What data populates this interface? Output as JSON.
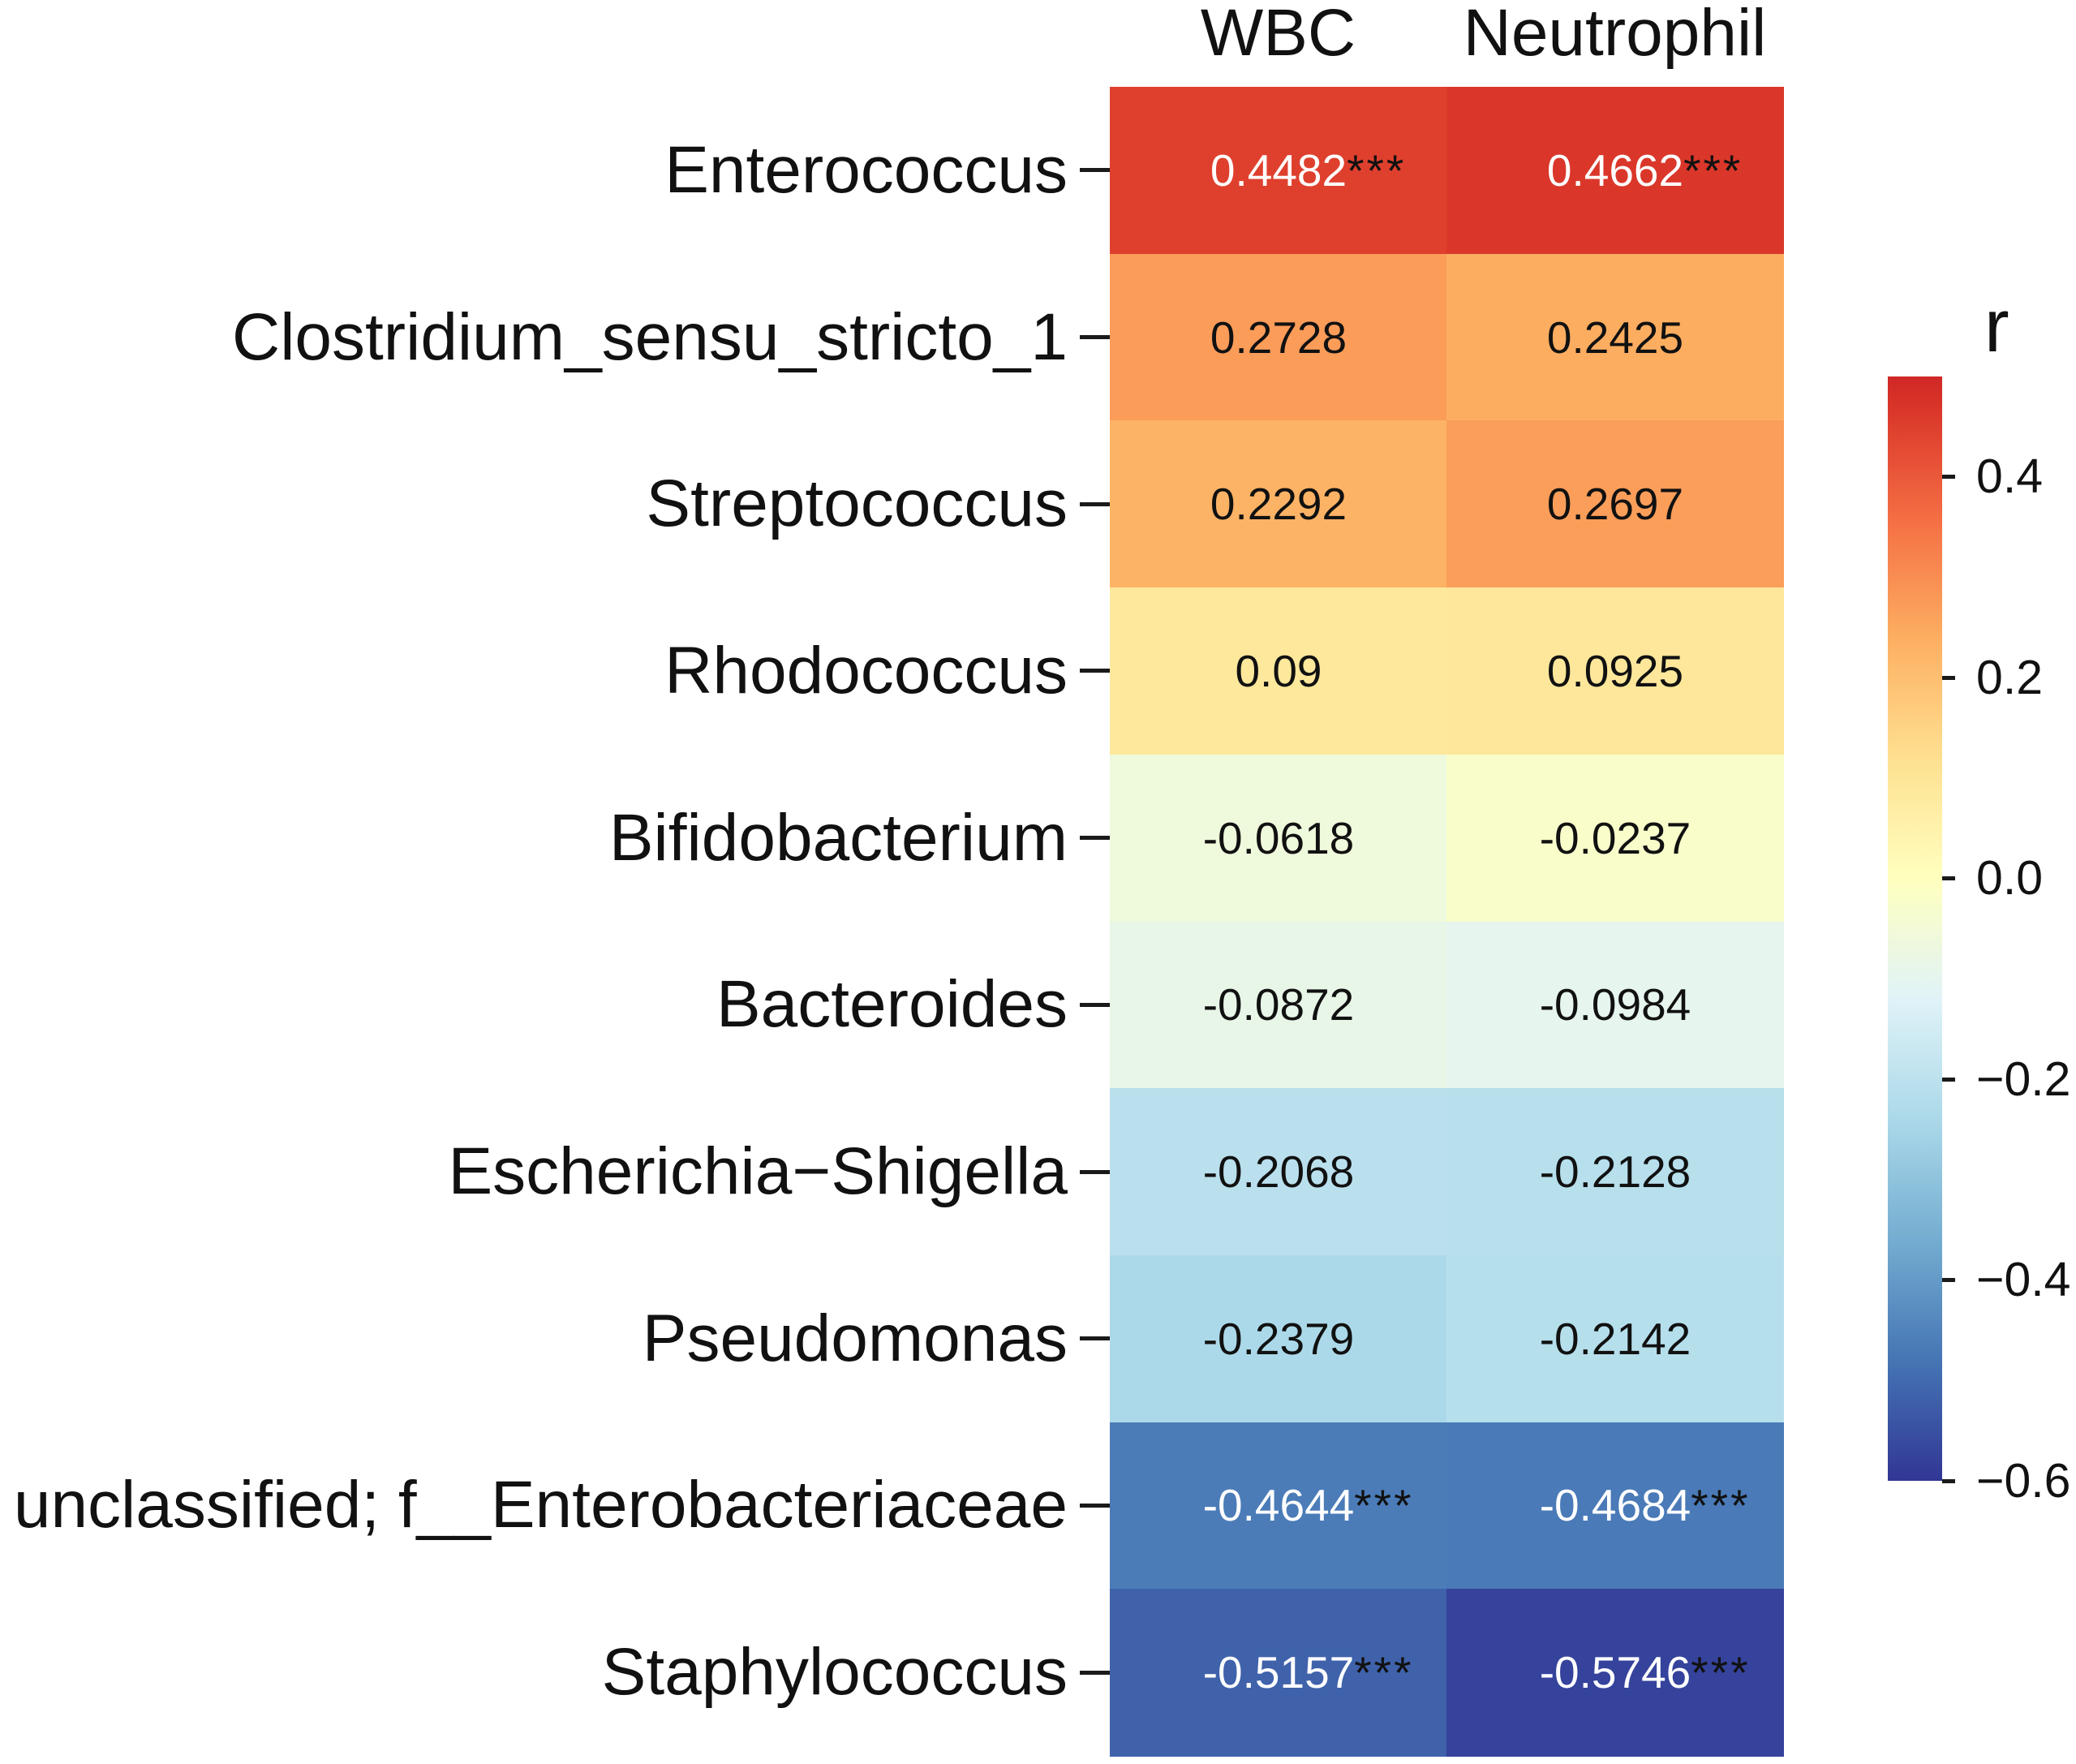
{
  "chart_data": {
    "type": "heatmap",
    "columns": [
      "WBC",
      "Neutrophil"
    ],
    "rows": [
      "Enterococcus",
      "Clostridium_sensu_stricto_1",
      "Streptococcus",
      "Rhodococcus",
      "Bifidobacterium",
      "Bacteroides",
      "Escherichia−Shigella",
      "Pseudomonas",
      "unclassified; f__Enterobacteriaceae",
      "Staphylococcus"
    ],
    "values": [
      [
        0.4482,
        0.4662
      ],
      [
        0.2728,
        0.2425
      ],
      [
        0.2292,
        0.2697
      ],
      [
        0.09,
        0.0925
      ],
      [
        -0.0618,
        -0.0237
      ],
      [
        -0.0872,
        -0.0984
      ],
      [
        -0.2068,
        -0.2128
      ],
      [
        -0.2379,
        -0.2142
      ],
      [
        -0.4644,
        -0.4684
      ],
      [
        -0.5157,
        -0.5746
      ]
    ],
    "value_labels": [
      [
        "0.4482",
        "0.4662"
      ],
      [
        "0.2728",
        "0.2425"
      ],
      [
        "0.2292",
        "0.2697"
      ],
      [
        "0.09",
        "0.0925"
      ],
      [
        "-0.0618",
        "-0.0237"
      ],
      [
        "-0.0872",
        "-0.0984"
      ],
      [
        "-0.2068",
        "-0.2128"
      ],
      [
        "-0.2379",
        "-0.2142"
      ],
      [
        "-0.4644",
        "-0.4684"
      ],
      [
        "-0.5157",
        "-0.5746"
      ]
    ],
    "significance": [
      [
        "***",
        "***"
      ],
      [
        "",
        ""
      ],
      [
        "",
        ""
      ],
      [
        "",
        ""
      ],
      [
        "",
        ""
      ],
      [
        "",
        ""
      ],
      [
        "",
        ""
      ],
      [
        "",
        ""
      ],
      [
        "***",
        "***"
      ],
      [
        "***",
        "***"
      ]
    ],
    "legend": {
      "title": "r",
      "position": "right",
      "range": [
        -0.6,
        0.5
      ],
      "ticks": [
        0.4,
        0.2,
        0.0,
        -0.2,
        -0.4,
        -0.6
      ],
      "tick_labels": [
        "0.4",
        "0.2",
        "0.0",
        "−0.2",
        "−0.4",
        "−0.6"
      ]
    },
    "color_scale": {
      "limits": [
        -0.6,
        0.6
      ],
      "colors": [
        "#313695",
        "#4575b4",
        "#74add1",
        "#abd9e9",
        "#e0f3f8",
        "#ffffbf",
        "#fee090",
        "#fdae61",
        "#f46d43",
        "#d73027",
        "#a50026"
      ]
    }
  },
  "colors": {
    "text": "#111111",
    "text_on_dark": "#ffffff"
  }
}
